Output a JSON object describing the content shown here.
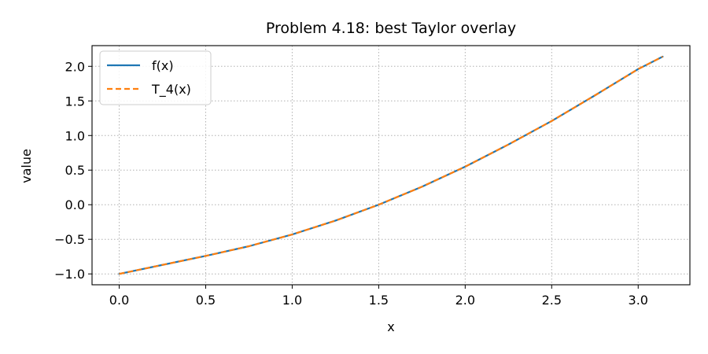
{
  "chart_data": {
    "type": "line",
    "title": "Problem 4.18: best Taylor overlay",
    "xlabel": "x",
    "ylabel": "value",
    "xlim": [
      -0.157,
      3.299
    ],
    "ylim": [
      -1.157,
      2.299
    ],
    "xticks": [
      0.0,
      0.5,
      1.0,
      1.5,
      2.0,
      2.5,
      3.0
    ],
    "xtick_labels": [
      "0.0",
      "0.5",
      "1.0",
      "1.5",
      "2.0",
      "2.5",
      "3.0"
    ],
    "yticks": [
      -1.0,
      -0.5,
      0.0,
      0.5,
      1.0,
      1.5,
      2.0
    ],
    "ytick_labels": [
      "−1.0",
      "−0.5",
      "0.0",
      "0.5",
      "1.0",
      "1.5",
      "2.0"
    ],
    "grid": true,
    "legend_position": "top-left",
    "series": [
      {
        "name": "f(x)",
        "color": "#1f77b4",
        "style": "solid",
        "x": [
          0.0,
          0.25,
          0.5,
          0.75,
          1.0,
          1.25,
          1.5,
          1.75,
          2.0,
          2.25,
          2.5,
          2.75,
          3.0,
          3.1416
        ],
        "y": [
          -1.0,
          -0.87,
          -0.74,
          -0.6,
          -0.43,
          -0.23,
          0.0,
          0.26,
          0.55,
          0.87,
          1.21,
          1.58,
          1.96,
          2.14
        ]
      },
      {
        "name": "T_4(x)",
        "color": "#ff7f0e",
        "style": "dashed",
        "x": [
          0.0,
          0.25,
          0.5,
          0.75,
          1.0,
          1.25,
          1.5,
          1.75,
          2.0,
          2.25,
          2.5,
          2.75,
          3.0,
          3.1416
        ],
        "y": [
          -1.0,
          -0.87,
          -0.74,
          -0.6,
          -0.43,
          -0.23,
          0.0,
          0.26,
          0.55,
          0.87,
          1.21,
          1.58,
          1.96,
          2.14
        ]
      }
    ]
  }
}
